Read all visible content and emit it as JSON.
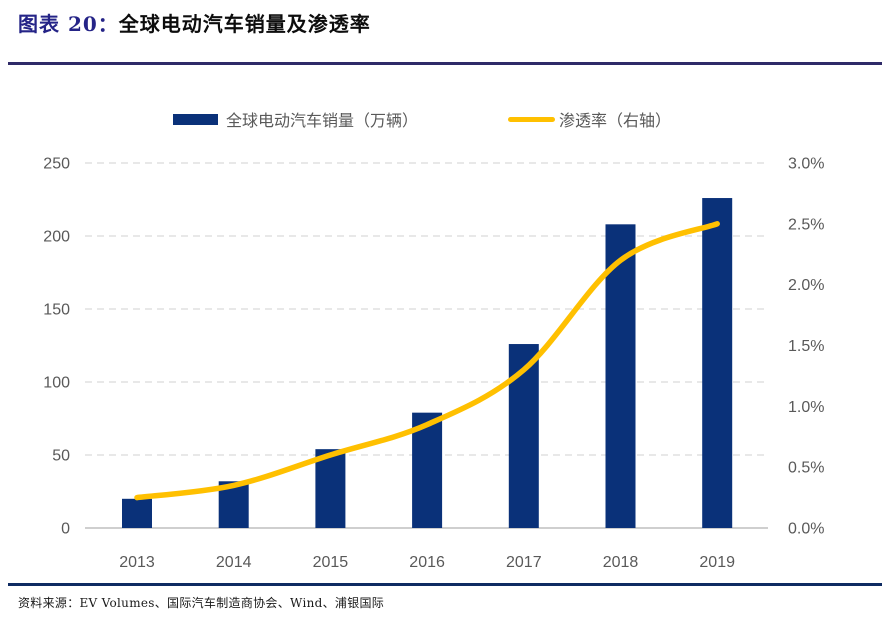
{
  "header": {
    "label": "图表 20：",
    "title": "全球电动汽车销量及渗透率"
  },
  "legend": [
    {
      "label": "全球电动汽车销量（万辆）",
      "swatch": "bar",
      "color": "#0a3179"
    },
    {
      "label": "渗透率（右轴）",
      "swatch": "line",
      "color": "#ffc000"
    }
  ],
  "chart_data": {
    "type": "combo",
    "categories": [
      "2013",
      "2014",
      "2015",
      "2016",
      "2017",
      "2018",
      "2019"
    ],
    "series": [
      {
        "name": "全球电动汽车销量（万辆）",
        "type": "bar",
        "axis": "left",
        "color": "#0a3179",
        "values": [
          20,
          32,
          54,
          79,
          126,
          208,
          226
        ]
      },
      {
        "name": "渗透率（右轴）",
        "type": "line",
        "axis": "right",
        "color": "#ffc000",
        "values_percent": [
          0.25,
          0.35,
          0.6,
          0.85,
          1.3,
          2.2,
          2.5
        ]
      }
    ],
    "left_axis": {
      "min": 0,
      "max": 250,
      "step": 50,
      "tick_labels": [
        "0",
        "50",
        "100",
        "150",
        "200",
        "250"
      ]
    },
    "right_axis": {
      "min": 0,
      "max": 3,
      "step": 0.5,
      "tick_labels": [
        "0.0%",
        "0.5%",
        "1.0%",
        "1.5%",
        "2.0%",
        "2.5%",
        "3.0%"
      ]
    },
    "grid": "dashed-horizontal",
    "legend_position": "top",
    "title": "全球电动汽车销量及渗透率",
    "xlabel": "",
    "ylabel_left": "万辆",
    "ylabel_right": "%"
  },
  "footer": {
    "source": "资料来源：EV Volumes、国际汽车制造商协会、Wind、浦银国际"
  },
  "colors": {
    "bar": "#0a3179",
    "line": "#ffc000",
    "title_prefix": "#252487",
    "header_rule": "#2f2a68",
    "footer_rule": "#0e2b62",
    "axis_text": "#595959",
    "gridline": "#d9d9d9"
  }
}
